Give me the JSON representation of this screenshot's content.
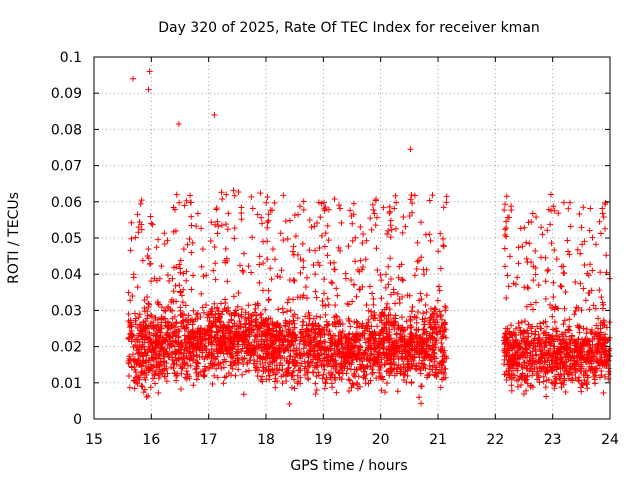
{
  "chart_data": {
    "type": "scatter",
    "title": "Day 320 of 2025, Rate Of TEC Index for receiver kman",
    "xlabel": "GPS time / hours",
    "ylabel": "ROTI / TECUs",
    "xlim": [
      15,
      24
    ],
    "ylim": [
      0,
      0.1
    ],
    "x_ticks": [
      "15",
      "16",
      "17",
      "18",
      "19",
      "20",
      "21",
      "22",
      "23",
      "24"
    ],
    "y_ticks": [
      "0",
      "0.01",
      "0.02",
      "0.03",
      "0.04",
      "0.05",
      "0.06",
      "0.07",
      "0.08",
      "0.09",
      "0.1"
    ],
    "grid": "dotted",
    "marker": "+",
    "color": "#ff0000",
    "data_gap": [
      21.15,
      22.15
    ],
    "notable_points": [
      {
        "x": 15.68,
        "y": 0.094
      },
      {
        "x": 15.97,
        "y": 0.096
      },
      {
        "x": 15.95,
        "y": 0.091
      },
      {
        "x": 16.48,
        "y": 0.0815
      },
      {
        "x": 17.1,
        "y": 0.084
      },
      {
        "x": 20.52,
        "y": 0.0745
      },
      {
        "x": 21.15,
        "y": 0.0615
      },
      {
        "x": 22.2,
        "y": 0.0615
      },
      {
        "x": 22.97,
        "y": 0.062
      },
      {
        "x": 20.67,
        "y": 0.006
      }
    ],
    "density_profile": [
      {
        "x_range": [
          15.6,
          16.0
        ],
        "median": 0.02,
        "spread": 0.012
      },
      {
        "x_range": [
          16.0,
          17.0
        ],
        "median": 0.021,
        "spread": 0.01
      },
      {
        "x_range": [
          17.0,
          18.0
        ],
        "median": 0.022,
        "spread": 0.01
      },
      {
        "x_range": [
          18.0,
          19.0
        ],
        "median": 0.02,
        "spread": 0.01
      },
      {
        "x_range": [
          19.0,
          20.0
        ],
        "median": 0.019,
        "spread": 0.01
      },
      {
        "x_range": [
          20.0,
          21.15
        ],
        "median": 0.021,
        "spread": 0.011
      },
      {
        "x_range": [
          22.15,
          23.0
        ],
        "median": 0.018,
        "spread": 0.009
      },
      {
        "x_range": [
          23.0,
          24.0
        ],
        "median": 0.018,
        "spread": 0.009
      }
    ]
  }
}
